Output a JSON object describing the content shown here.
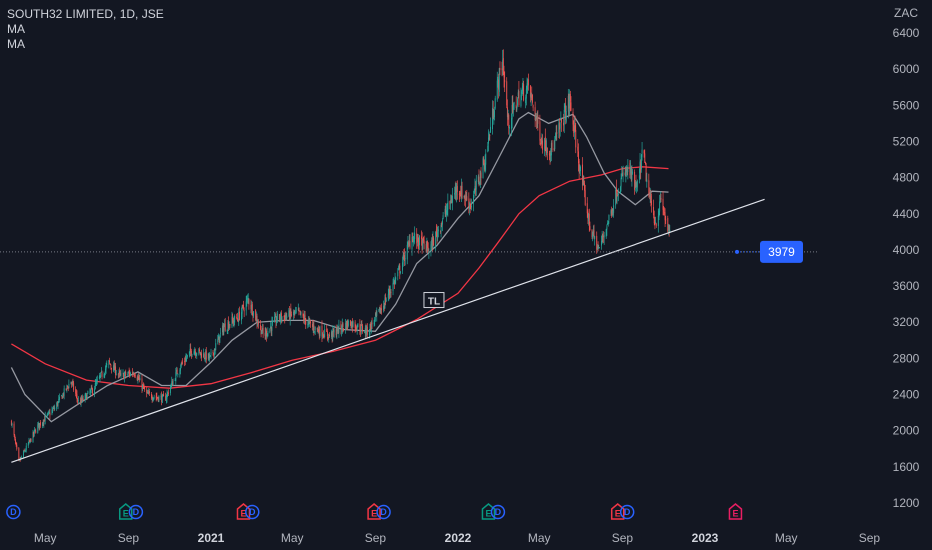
{
  "legend": {
    "symbol": "SOUTH32 LIMITED, 1D, JSE",
    "indicators": [
      "MA",
      "MA"
    ]
  },
  "colors": {
    "background": "#131722",
    "up": "#26a69a",
    "down": "#ef5350",
    "ma_short": "#9598a1",
    "ma_long": "#f23645",
    "trendline": "#e0e3eb",
    "price_label": "#2962ff",
    "dividend": "#2962ff",
    "earnings_green": "#089981",
    "earnings_red": "#f23645",
    "earnings_pink": "#e91e63"
  },
  "chart_data": {
    "type": "candlestick",
    "currency": "ZAC",
    "ylim": [
      1000,
      6600
    ],
    "y_ticks": [
      1200,
      1600,
      2000,
      2400,
      2800,
      3200,
      3600,
      4000,
      4400,
      4800,
      5200,
      5600,
      6000,
      6400
    ],
    "x_ticks": [
      {
        "date": "2020-05-01",
        "label": "May",
        "bold": false
      },
      {
        "date": "2020-09-01",
        "label": "Sep",
        "bold": false
      },
      {
        "date": "2021-01-01",
        "label": "2021",
        "bold": true
      },
      {
        "date": "2021-05-01",
        "label": "May",
        "bold": false
      },
      {
        "date": "2021-09-01",
        "label": "Sep",
        "bold": false
      },
      {
        "date": "2022-01-01",
        "label": "2022",
        "bold": true
      },
      {
        "date": "2022-05-01",
        "label": "May",
        "bold": false
      },
      {
        "date": "2022-09-01",
        "label": "Sep",
        "bold": false
      },
      {
        "date": "2023-01-01",
        "label": "2023",
        "bold": true
      },
      {
        "date": "2023-05-01",
        "label": "May",
        "bold": false
      },
      {
        "date": "2023-09-01",
        "label": "Sep",
        "bold": false
      }
    ],
    "price_path": [
      [
        "2020-03-12",
        2100
      ],
      [
        "2020-03-23",
        1650
      ],
      [
        "2020-04-20",
        2050
      ],
      [
        "2020-05-15",
        2250
      ],
      [
        "2020-06-08",
        2550
      ],
      [
        "2020-06-20",
        2300
      ],
      [
        "2020-07-10",
        2450
      ],
      [
        "2020-08-03",
        2750
      ],
      [
        "2020-08-20",
        2600
      ],
      [
        "2020-09-10",
        2650
      ],
      [
        "2020-09-28",
        2400
      ],
      [
        "2020-10-25",
        2350
      ],
      [
        "2020-11-15",
        2700
      ],
      [
        "2020-12-05",
        2900
      ],
      [
        "2020-12-31",
        2800
      ],
      [
        "2021-01-20",
        3150
      ],
      [
        "2021-02-10",
        3250
      ],
      [
        "2021-02-25",
        3450
      ],
      [
        "2021-03-20",
        3050
      ],
      [
        "2021-04-10",
        3250
      ],
      [
        "2021-05-10",
        3300
      ],
      [
        "2021-05-30",
        3150
      ],
      [
        "2021-06-25",
        3050
      ],
      [
        "2021-07-25",
        3200
      ],
      [
        "2021-08-20",
        3100
      ],
      [
        "2021-09-10",
        3350
      ],
      [
        "2021-10-05",
        3750
      ],
      [
        "2021-10-25",
        4150
      ],
      [
        "2021-11-20",
        4000
      ],
      [
        "2021-12-10",
        4350
      ],
      [
        "2021-12-31",
        4700
      ],
      [
        "2022-01-20",
        4500
      ],
      [
        "2022-02-10",
        5000
      ],
      [
        "2022-02-28",
        5800
      ],
      [
        "2022-03-08",
        6100
      ],
      [
        "2022-03-16",
        5400
      ],
      [
        "2022-04-01",
        5700
      ],
      [
        "2022-04-15",
        5800
      ],
      [
        "2022-05-05",
        5200
      ],
      [
        "2022-05-20",
        5100
      ],
      [
        "2022-06-05",
        5450
      ],
      [
        "2022-06-15",
        5650
      ],
      [
        "2022-06-30",
        4900
      ],
      [
        "2022-07-15",
        4250
      ],
      [
        "2022-07-28",
        4000
      ],
      [
        "2022-08-12",
        4350
      ],
      [
        "2022-08-28",
        4750
      ],
      [
        "2022-09-10",
        4900
      ],
      [
        "2022-09-22",
        4650
      ],
      [
        "2022-10-01",
        5100
      ],
      [
        "2022-10-10",
        4600
      ],
      [
        "2022-10-20",
        4300
      ],
      [
        "2022-10-28",
        4550
      ],
      [
        "2022-11-05",
        4300
      ],
      [
        "2022-11-10",
        4150
      ]
    ],
    "ma_short_path": [
      [
        "2020-03-12",
        2700
      ],
      [
        "2020-04-01",
        2400
      ],
      [
        "2020-05-10",
        2100
      ],
      [
        "2020-06-20",
        2300
      ],
      [
        "2020-08-01",
        2500
      ],
      [
        "2020-09-15",
        2650
      ],
      [
        "2020-10-20",
        2500
      ],
      [
        "2020-11-25",
        2500
      ],
      [
        "2020-12-31",
        2750
      ],
      [
        "2021-02-01",
        3000
      ],
      [
        "2021-03-10",
        3200
      ],
      [
        "2021-04-20",
        3220
      ],
      [
        "2021-06-01",
        3220
      ],
      [
        "2021-07-15",
        3120
      ],
      [
        "2021-09-01",
        3100
      ],
      [
        "2021-10-01",
        3400
      ],
      [
        "2021-11-01",
        3850
      ],
      [
        "2021-12-01",
        4050
      ],
      [
        "2022-01-01",
        4350
      ],
      [
        "2022-02-01",
        4600
      ],
      [
        "2022-03-01",
        5000
      ],
      [
        "2022-04-01",
        5450
      ],
      [
        "2022-04-15",
        5520
      ],
      [
        "2022-05-15",
        5400
      ],
      [
        "2022-06-20",
        5500
      ],
      [
        "2022-07-10",
        5250
      ],
      [
        "2022-08-05",
        4850
      ],
      [
        "2022-08-25",
        4650
      ],
      [
        "2022-09-20",
        4500
      ],
      [
        "2022-10-15",
        4650
      ],
      [
        "2022-11-08",
        4640
      ]
    ],
    "ma_long_path": [
      [
        "2020-03-12",
        2960
      ],
      [
        "2020-05-01",
        2740
      ],
      [
        "2020-07-01",
        2560
      ],
      [
        "2020-09-01",
        2500
      ],
      [
        "2020-11-01",
        2470
      ],
      [
        "2021-01-01",
        2520
      ],
      [
        "2021-03-01",
        2640
      ],
      [
        "2021-05-01",
        2780
      ],
      [
        "2021-07-01",
        2880
      ],
      [
        "2021-09-01",
        3000
      ],
      [
        "2021-11-01",
        3230
      ],
      [
        "2022-01-01",
        3520
      ],
      [
        "2022-02-01",
        3800
      ],
      [
        "2022-03-01",
        4080
      ],
      [
        "2022-04-01",
        4400
      ],
      [
        "2022-05-01",
        4600
      ],
      [
        "2022-06-15",
        4760
      ],
      [
        "2022-08-01",
        4830
      ],
      [
        "2022-09-01",
        4900
      ],
      [
        "2022-10-01",
        4920
      ],
      [
        "2022-11-08",
        4900
      ]
    ],
    "trendline": {
      "start": [
        "2020-03-12",
        1650
      ],
      "end": [
        "2023-03-30",
        4560
      ],
      "label": "TL"
    },
    "current_price": {
      "value": 3979,
      "label": "3979"
    },
    "events": [
      {
        "date": "2020-03-15",
        "letter": "D",
        "kind": "dividend"
      },
      {
        "date": "2020-08-28",
        "letter": "E",
        "kind": "earnings_green"
      },
      {
        "date": "2020-09-12",
        "letter": "D",
        "kind": "dividend"
      },
      {
        "date": "2021-02-18",
        "letter": "E",
        "kind": "earnings_red"
      },
      {
        "date": "2021-03-03",
        "letter": "D",
        "kind": "dividend"
      },
      {
        "date": "2021-08-30",
        "letter": "E",
        "kind": "earnings_red"
      },
      {
        "date": "2021-09-13",
        "letter": "D",
        "kind": "dividend"
      },
      {
        "date": "2022-02-15",
        "letter": "E",
        "kind": "earnings_green"
      },
      {
        "date": "2022-03-01",
        "letter": "D",
        "kind": "dividend"
      },
      {
        "date": "2022-08-25",
        "letter": "E",
        "kind": "earnings_red"
      },
      {
        "date": "2022-09-08",
        "letter": "D",
        "kind": "dividend"
      },
      {
        "date": "2023-02-15",
        "letter": "E",
        "kind": "earnings_pink"
      }
    ]
  }
}
